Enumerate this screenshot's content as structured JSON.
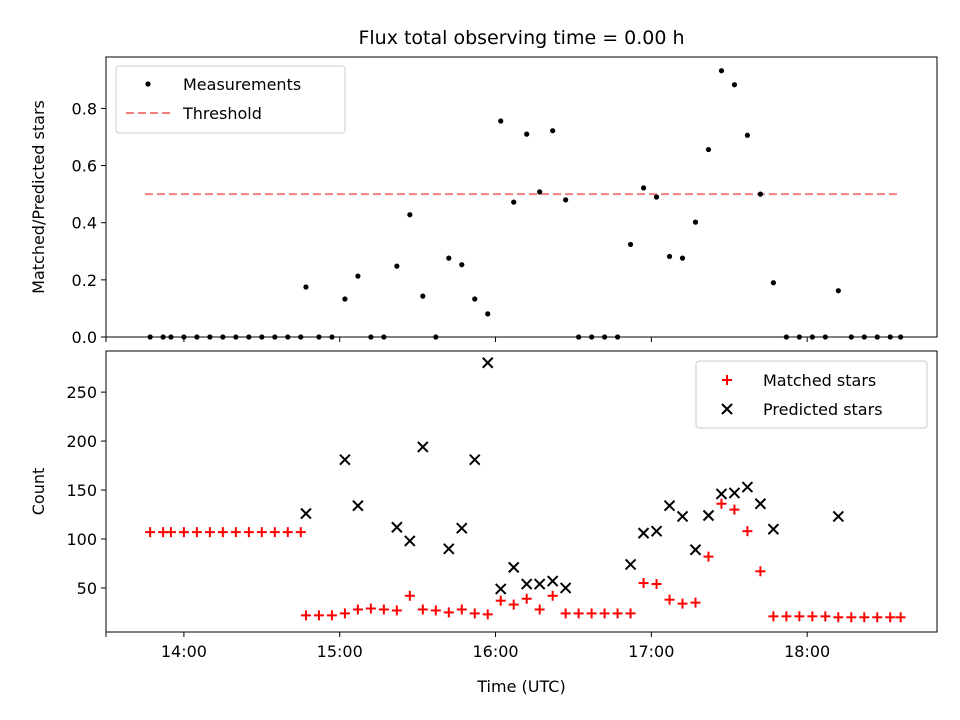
{
  "chart_data": [
    {
      "type": "scatter",
      "title": "Flux total observing time = 0.00 h",
      "xlabel": "",
      "ylabel": "Matched/Predicted stars",
      "xlim": [
        "13:30",
        "18:50"
      ],
      "ylim": [
        0,
        0.98
      ],
      "y_ticks": [
        0.0,
        0.2,
        0.4,
        0.6,
        0.8
      ],
      "y_tick_labels": [
        "0.0",
        "0.2",
        "0.4",
        "0.6",
        "0.8"
      ],
      "legend": "top-left",
      "legend_entries": [
        "Measurements",
        "Threshold"
      ],
      "threshold": {
        "name": "Threshold",
        "y": 0.5,
        "x_range": [
          "13:45",
          "18:36"
        ],
        "color": "#f08080"
      },
      "series": [
        {
          "name": "Measurements",
          "marker": "dot",
          "color": "#000000",
          "points": [
            [
              "13:47",
              0.0
            ],
            [
              "13:52",
              0.0
            ],
            [
              "13:55",
              0.0
            ],
            [
              "14:00",
              0.0
            ],
            [
              "14:05",
              0.0
            ],
            [
              "14:10",
              0.0
            ],
            [
              "14:15",
              0.0
            ],
            [
              "14:20",
              0.0
            ],
            [
              "14:25",
              0.0
            ],
            [
              "14:30",
              0.0
            ],
            [
              "14:35",
              0.0
            ],
            [
              "14:40",
              0.0
            ],
            [
              "14:45",
              0.0
            ],
            [
              "14:47",
              0.175
            ],
            [
              "14:52",
              0.0
            ],
            [
              "14:57",
              0.0
            ],
            [
              "15:02",
              0.133
            ],
            [
              "15:07",
              0.213
            ],
            [
              "15:12",
              0.0
            ],
            [
              "15:17",
              0.0
            ],
            [
              "15:22",
              0.248
            ],
            [
              "15:27",
              0.428
            ],
            [
              "15:32",
              0.143
            ],
            [
              "15:37",
              0.0
            ],
            [
              "15:42",
              0.276
            ],
            [
              "15:47",
              0.253
            ],
            [
              "15:52",
              0.133
            ],
            [
              "15:57",
              0.081
            ],
            [
              "16:02",
              0.756
            ],
            [
              "16:07",
              0.472
            ],
            [
              "16:12",
              0.71
            ],
            [
              "16:17",
              0.508
            ],
            [
              "16:22",
              0.722
            ],
            [
              "16:27",
              0.48
            ],
            [
              "16:32",
              0.0
            ],
            [
              "16:37",
              0.0
            ],
            [
              "16:42",
              0.0
            ],
            [
              "16:47",
              0.0
            ],
            [
              "16:52",
              0.324
            ],
            [
              "16:57",
              0.522
            ],
            [
              "17:02",
              0.49
            ],
            [
              "17:07",
              0.282
            ],
            [
              "17:12",
              0.276
            ],
            [
              "17:17",
              0.402
            ],
            [
              "17:22",
              0.656
            ],
            [
              "17:27",
              0.932
            ],
            [
              "17:32",
              0.883
            ],
            [
              "17:37",
              0.706
            ],
            [
              "17:42",
              0.5
            ],
            [
              "17:47",
              0.19
            ],
            [
              "17:52",
              0.0
            ],
            [
              "17:57",
              0.0
            ],
            [
              "18:02",
              0.0
            ],
            [
              "18:07",
              0.0
            ],
            [
              "18:12",
              0.162
            ],
            [
              "18:17",
              0.0
            ],
            [
              "18:22",
              0.0
            ],
            [
              "18:27",
              0.0
            ],
            [
              "18:32",
              0.0
            ],
            [
              "18:36",
              0.0
            ]
          ]
        }
      ]
    },
    {
      "type": "scatter",
      "title": "",
      "xlabel": "Time (UTC)",
      "ylabel": "Count",
      "xlim": [
        "13:30",
        "18:50"
      ],
      "ylim": [
        5,
        292
      ],
      "y_ticks": [
        50,
        100,
        150,
        200,
        250
      ],
      "y_tick_labels": [
        "50",
        "100",
        "150",
        "200",
        "250"
      ],
      "x_ticks": [
        "13:30",
        "14:00",
        "15:00",
        "16:00",
        "17:00",
        "18:00"
      ],
      "x_tick_labels": [
        "",
        "14:00",
        "15:00",
        "16:00",
        "17:00",
        "18:00"
      ],
      "legend": "top-right",
      "legend_entries": [
        "Matched stars",
        "Predicted stars"
      ],
      "series": [
        {
          "name": "Matched stars",
          "marker": "plus",
          "color": "#ff0000",
          "points": [
            [
              "13:47",
              107
            ],
            [
              "13:52",
              107
            ],
            [
              "13:55",
              107
            ],
            [
              "14:00",
              107
            ],
            [
              "14:05",
              107
            ],
            [
              "14:10",
              107
            ],
            [
              "14:15",
              107
            ],
            [
              "14:20",
              107
            ],
            [
              "14:25",
              107
            ],
            [
              "14:30",
              107
            ],
            [
              "14:35",
              107
            ],
            [
              "14:40",
              107
            ],
            [
              "14:45",
              107
            ],
            [
              "14:47",
              22
            ],
            [
              "14:52",
              22
            ],
            [
              "14:57",
              22
            ],
            [
              "15:02",
              24
            ],
            [
              "15:07",
              28
            ],
            [
              "15:12",
              29
            ],
            [
              "15:17",
              28
            ],
            [
              "15:22",
              27
            ],
            [
              "15:27",
              42
            ],
            [
              "15:32",
              28
            ],
            [
              "15:37",
              27
            ],
            [
              "15:42",
              25
            ],
            [
              "15:47",
              28
            ],
            [
              "15:52",
              24
            ],
            [
              "15:57",
              23
            ],
            [
              "16:02",
              37
            ],
            [
              "16:07",
              33
            ],
            [
              "16:12",
              39
            ],
            [
              "16:17",
              28
            ],
            [
              "16:22",
              42
            ],
            [
              "16:27",
              24
            ],
            [
              "16:32",
              24
            ],
            [
              "16:37",
              24
            ],
            [
              "16:42",
              24
            ],
            [
              "16:47",
              24
            ],
            [
              "16:52",
              24
            ],
            [
              "16:57",
              55
            ],
            [
              "17:02",
              54
            ],
            [
              "17:07",
              38
            ],
            [
              "17:12",
              34
            ],
            [
              "17:17",
              35
            ],
            [
              "17:22",
              82
            ],
            [
              "17:27",
              136
            ],
            [
              "17:32",
              130
            ],
            [
              "17:37",
              108
            ],
            [
              "17:42",
              67
            ],
            [
              "17:47",
              21
            ],
            [
              "17:52",
              21
            ],
            [
              "17:57",
              21
            ],
            [
              "18:02",
              21
            ],
            [
              "18:07",
              21
            ],
            [
              "18:12",
              20
            ],
            [
              "18:17",
              20
            ],
            [
              "18:22",
              20
            ],
            [
              "18:27",
              20
            ],
            [
              "18:32",
              20
            ],
            [
              "18:36",
              20
            ]
          ]
        },
        {
          "name": "Predicted stars",
          "marker": "cross",
          "color": "#000000",
          "points": [
            [
              "14:47",
              126
            ],
            [
              "15:02",
              181
            ],
            [
              "15:07",
              134
            ],
            [
              "15:22",
              112
            ],
            [
              "15:27",
              98
            ],
            [
              "15:32",
              194
            ],
            [
              "15:42",
              90
            ],
            [
              "15:47",
              111
            ],
            [
              "15:52",
              181
            ],
            [
              "15:57",
              280
            ],
            [
              "16:02",
              49
            ],
            [
              "16:07",
              71
            ],
            [
              "16:12",
              54
            ],
            [
              "16:17",
              54
            ],
            [
              "16:22",
              57
            ],
            [
              "16:27",
              50
            ],
            [
              "16:52",
              74
            ],
            [
              "16:57",
              106
            ],
            [
              "17:02",
              108
            ],
            [
              "17:07",
              134
            ],
            [
              "17:12",
              123
            ],
            [
              "17:17",
              89
            ],
            [
              "17:22",
              124
            ],
            [
              "17:27",
              146
            ],
            [
              "17:32",
              147
            ],
            [
              "17:37",
              153
            ],
            [
              "17:42",
              136
            ],
            [
              "17:47",
              110
            ],
            [
              "18:12",
              123
            ]
          ]
        }
      ]
    }
  ]
}
